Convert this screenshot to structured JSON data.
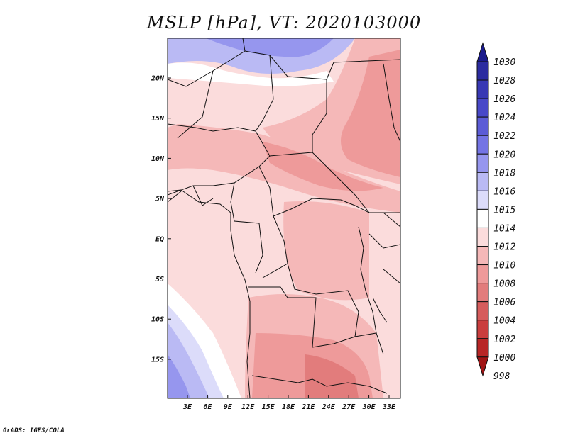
{
  "title": "MSLP [hPa], VT: 2020103000",
  "credit": "GrADS: IGES/COLA",
  "map": {
    "lon_labels": [
      "3E",
      "6E",
      "9E",
      "12E",
      "15E",
      "18E",
      "21E",
      "24E",
      "27E",
      "30E",
      "33E"
    ],
    "lat_labels": [
      "20N",
      "15N",
      "10N",
      "5N",
      "EQ",
      "5S",
      "10S",
      "15S"
    ]
  },
  "colorbar": {
    "levels": [
      "1030",
      "1028",
      "1026",
      "1024",
      "1022",
      "1020",
      "1018",
      "1016",
      "1015",
      "1014",
      "1012",
      "1010",
      "1008",
      "1006",
      "1004",
      "1002",
      "1000",
      "998"
    ],
    "colors": {
      "1030": "#1a1a8c",
      "1028": "#2b2ba0",
      "1026": "#3838b4",
      "1024": "#4848c8",
      "1022": "#5c5cd6",
      "1020": "#7474e4",
      "1018": "#9696ee",
      "1016": "#babaf4",
      "1015": "#dcdcfa",
      "1014": "#ffffff",
      "1012": "#fbdcdc",
      "1010": "#f5b8b8",
      "1008": "#ee9a9a",
      "1006": "#e27c7c",
      "1004": "#d65c5c",
      "1002": "#ca3e3e",
      "1000": "#b82626",
      "998": "#a01414"
    }
  }
}
